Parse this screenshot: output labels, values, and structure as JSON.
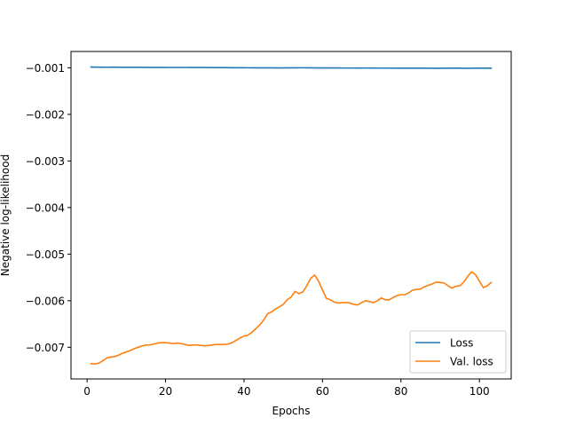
{
  "chart_data": {
    "type": "line",
    "title": "",
    "xlabel": "Epochs",
    "ylabel": "Negative log-likelihood",
    "xlim": [
      -4.1,
      108.1
    ],
    "ylim": [
      -0.00768,
      -0.00065
    ],
    "xticks": [
      0,
      20,
      40,
      60,
      80,
      100
    ],
    "xtick_labels": [
      "0",
      "20",
      "40",
      "60",
      "80",
      "100"
    ],
    "yticks": [
      -0.007,
      -0.006,
      -0.005,
      -0.004,
      -0.003,
      -0.002,
      -0.001
    ],
    "ytick_labels": [
      "−0.007",
      "−0.006",
      "−0.005",
      "−0.004",
      "−0.003",
      "−0.002",
      "−0.001"
    ],
    "grid": false,
    "legend_position": "lower-right",
    "series": [
      {
        "name": "Loss",
        "color": "#1f77b4",
        "x": [
          1,
          3,
          5,
          7,
          9,
          11,
          13,
          15,
          17,
          19,
          21,
          23,
          25,
          27,
          29,
          31,
          33,
          35,
          37,
          39,
          41,
          43,
          45,
          47,
          49,
          51,
          53,
          55,
          57,
          59,
          61,
          63,
          65,
          67,
          69,
          71,
          73,
          75,
          77,
          79,
          81,
          83,
          85,
          87,
          89,
          91,
          93,
          95,
          97,
          99,
          101,
          103
        ],
        "y": [
          -0.000985,
          -0.000987,
          -0.000988,
          -0.000987,
          -0.000989,
          -0.00099,
          -0.00099,
          -0.000991,
          -0.000992,
          -0.000992,
          -0.000993,
          -0.000993,
          -0.000993,
          -0.000994,
          -0.000995,
          -0.000995,
          -0.000996,
          -0.000997,
          -0.000998,
          -0.000999,
          -0.001,
          -0.001001,
          -0.001001,
          -0.001002,
          -0.001003,
          -0.001002,
          -0.001001,
          -0.001,
          -0.001002,
          -0.001003,
          -0.001004,
          -0.001004,
          -0.001005,
          -0.001005,
          -0.001006,
          -0.001005,
          -0.001006,
          -0.001007,
          -0.001007,
          -0.001008,
          -0.001008,
          -0.001008,
          -0.001009,
          -0.001009,
          -0.00101,
          -0.001009,
          -0.001009,
          -0.001008,
          -0.00101,
          -0.001009,
          -0.001009,
          -0.001008
        ]
      },
      {
        "name": "Val. loss",
        "color": "#ff7f0e",
        "x": [
          1,
          2,
          3,
          4,
          5,
          6,
          7,
          8,
          9,
          10,
          11,
          12,
          13,
          14,
          15,
          16,
          17,
          18,
          19,
          20,
          21,
          22,
          23,
          24,
          25,
          26,
          27,
          28,
          29,
          30,
          31,
          32,
          33,
          34,
          35,
          36,
          37,
          38,
          39,
          40,
          41,
          42,
          43,
          44,
          45,
          46,
          47,
          48,
          49,
          50,
          51,
          52,
          53,
          54,
          55,
          56,
          57,
          58,
          59,
          60,
          61,
          62,
          63,
          64,
          65,
          66,
          67,
          68,
          69,
          70,
          71,
          72,
          73,
          74,
          75,
          76,
          77,
          78,
          79,
          80,
          81,
          82,
          83,
          84,
          85,
          86,
          87,
          88,
          89,
          90,
          91,
          92,
          93,
          94,
          95,
          96,
          97,
          98,
          99,
          100,
          101,
          102,
          103
        ],
        "y": [
          -0.00735,
          -0.00736,
          -0.00734,
          -0.00729,
          -0.00723,
          -0.00721,
          -0.0072,
          -0.00717,
          -0.00713,
          -0.0071,
          -0.00707,
          -0.00703,
          -0.007,
          -0.00697,
          -0.00695,
          -0.00695,
          -0.00693,
          -0.00691,
          -0.0069,
          -0.0069,
          -0.00691,
          -0.00692,
          -0.00691,
          -0.00692,
          -0.00694,
          -0.00696,
          -0.00695,
          -0.00695,
          -0.00696,
          -0.00697,
          -0.00696,
          -0.00695,
          -0.00694,
          -0.00694,
          -0.00694,
          -0.00693,
          -0.0069,
          -0.00685,
          -0.0068,
          -0.00676,
          -0.00674,
          -0.00668,
          -0.0066,
          -0.00652,
          -0.00642,
          -0.00628,
          -0.00624,
          -0.00618,
          -0.00613,
          -0.00608,
          -0.00598,
          -0.00592,
          -0.0058,
          -0.00585,
          -0.00581,
          -0.00568,
          -0.00552,
          -0.00545,
          -0.00558,
          -0.00577,
          -0.00595,
          -0.00598,
          -0.00603,
          -0.00605,
          -0.00604,
          -0.00604,
          -0.00605,
          -0.00608,
          -0.00609,
          -0.00604,
          -0.006,
          -0.00602,
          -0.00604,
          -0.006,
          -0.00594,
          -0.00598,
          -0.00598,
          -0.00593,
          -0.00589,
          -0.00587,
          -0.00587,
          -0.00583,
          -0.00577,
          -0.00576,
          -0.00575,
          -0.0057,
          -0.00567,
          -0.00564,
          -0.0056,
          -0.00561,
          -0.00562,
          -0.00568,
          -0.00573,
          -0.00569,
          -0.00568,
          -0.0056,
          -0.00548,
          -0.00538,
          -0.00544,
          -0.00558,
          -0.00572,
          -0.00568,
          -0.00561
        ]
      }
    ]
  }
}
